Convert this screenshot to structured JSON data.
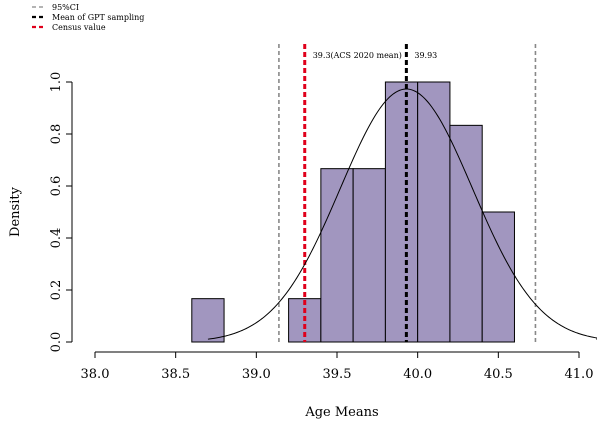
{
  "chart_data": {
    "type": "histogram",
    "xlabel": "Age Means",
    "ylabel": "Density",
    "xlim": [
      38.0,
      41.0
    ],
    "ylim": [
      0.0,
      1.0
    ],
    "x_ticks": [
      "38.0",
      "38.5",
      "39.0",
      "39.5",
      "40.0",
      "40.5",
      "41.0"
    ],
    "y_ticks": [
      "0.0",
      "0.2",
      "0.4",
      "0.6",
      "0.8",
      "1.0"
    ],
    "bins": [
      {
        "start": 38.6,
        "end": 38.8,
        "density": 0.1667
      },
      {
        "start": 38.8,
        "end": 39.0,
        "density": 0.0
      },
      {
        "start": 39.0,
        "end": 39.2,
        "density": 0.0
      },
      {
        "start": 39.2,
        "end": 39.4,
        "density": 0.1667
      },
      {
        "start": 39.4,
        "end": 39.6,
        "density": 0.6667
      },
      {
        "start": 39.6,
        "end": 39.8,
        "density": 0.6667
      },
      {
        "start": 39.8,
        "end": 40.0,
        "density": 1.0
      },
      {
        "start": 40.0,
        "end": 40.2,
        "density": 1.0
      },
      {
        "start": 40.2,
        "end": 40.4,
        "density": 0.8333
      },
      {
        "start": 40.4,
        "end": 40.6,
        "density": 0.5
      }
    ],
    "bar_fill": "#a196bf",
    "density_curve": {
      "type": "normal",
      "mean": 39.93,
      "sd": 0.41,
      "x_from": 38.7,
      "x_to": 41.2,
      "color": "#000000"
    },
    "reference_lines": [
      {
        "label": "95%CI",
        "x": 39.14,
        "color": "#888888",
        "style": "dashed"
      },
      {
        "label": "95%CI",
        "x": 40.73,
        "color": "#888888",
        "style": "dashed"
      },
      {
        "label": "Census value",
        "x": 39.3,
        "color": "#e0001b",
        "style": "dashed",
        "annotation": "39.3(ACS 2020 mean)"
      },
      {
        "label": "Mean of GPT sampling",
        "x": 39.93,
        "color": "#000000",
        "style": "dashed",
        "annotation": "39.93"
      }
    ],
    "legend": {
      "position": "top-left",
      "entries": [
        {
          "label": "95%CI",
          "color": "#888888"
        },
        {
          "label": "Mean of GPT sampling",
          "color": "#000000"
        },
        {
          "label": "Census value",
          "color": "#e0001b"
        }
      ]
    }
  }
}
